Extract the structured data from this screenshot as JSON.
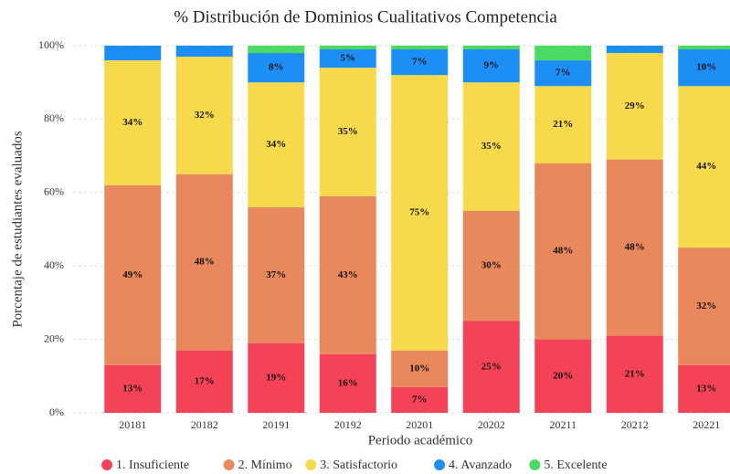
{
  "chart_data": {
    "type": "stacked_bar",
    "title": "% Distribución de Dominios Cualitativos Competencia",
    "x_label": "Periodo académico",
    "y_label": "Porcentaje de estudiantes evaluados",
    "categories": [
      "20181",
      "20182",
      "20191",
      "20192",
      "20201",
      "20202",
      "20211",
      "20212",
      "20221"
    ],
    "ylim": [
      0,
      100
    ],
    "yticks": [
      {
        "value": 0,
        "label": "0%"
      },
      {
        "value": 20,
        "label": "20%"
      },
      {
        "value": 40,
        "label": "40%"
      },
      {
        "value": 60,
        "label": "60%"
      },
      {
        "value": 80,
        "label": "80%"
      },
      {
        "value": 100,
        "label": "100%"
      }
    ],
    "grid": true,
    "legend": "bottom",
    "series": [
      {
        "name": "1. Insuficiente",
        "color": "#f44257",
        "values": [
          13,
          17,
          19,
          16,
          7,
          25,
          20,
          21,
          13
        ],
        "value_labels": [
          "13%",
          "17%",
          "19%",
          "16%",
          "7%",
          "25%",
          "20%",
          "21%",
          "13%"
        ]
      },
      {
        "name": "2. Mínimo",
        "color": "#e8885c",
        "values": [
          49,
          48,
          37,
          43,
          10,
          30,
          48,
          48,
          32
        ],
        "value_labels": [
          "49%",
          "48%",
          "37%",
          "43%",
          "10%",
          "30%",
          "48%",
          "48%",
          "32%"
        ]
      },
      {
        "name": "3. Satisfactorio",
        "color": "#f7d94c",
        "values": [
          34,
          32,
          34,
          35,
          75,
          35,
          21,
          29,
          44
        ],
        "value_labels": [
          "34%",
          "32%",
          "34%",
          "35%",
          "75%",
          "35%",
          "21%",
          "29%",
          "44%"
        ]
      },
      {
        "name": "4. Avanzado",
        "color": "#1e8ef7",
        "values": [
          4,
          3,
          8,
          5,
          7,
          9,
          7,
          2,
          10
        ],
        "value_labels": [
          null,
          null,
          "8%",
          "5%",
          "7%",
          "9%",
          "7%",
          null,
          "10%"
        ]
      },
      {
        "name": "5. Excelente",
        "color": "#4cd964",
        "values": [
          0,
          0,
          2,
          1,
          1,
          1,
          4,
          0,
          1
        ],
        "value_labels": [
          null,
          null,
          null,
          null,
          null,
          null,
          null,
          null,
          null
        ]
      }
    ]
  }
}
